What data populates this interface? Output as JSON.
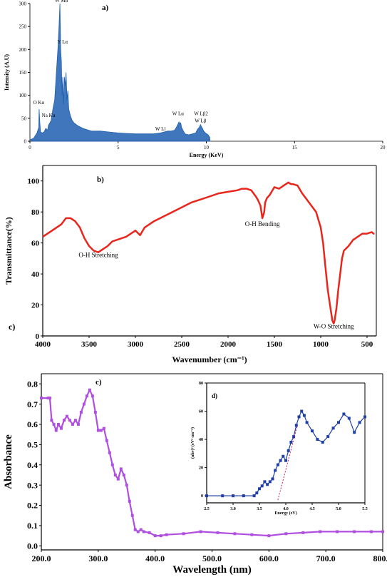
{
  "chart_data": [
    {
      "id": "a",
      "type": "area",
      "panel_label": "a)",
      "xlabel": "Energy (KeV)",
      "ylabel": "Intensity (A.U)",
      "xlim": [
        0,
        20
      ],
      "ylim": [
        0,
        300
      ],
      "xticks": [
        0,
        5,
        10,
        15,
        20
      ],
      "yticks": [
        0,
        50,
        100,
        150,
        200,
        250,
        300
      ],
      "color": "#1f5fb0",
      "series": [
        {
          "x": [
            0.05,
            0.2,
            0.3,
            0.4,
            0.5,
            0.52,
            0.56,
            0.6,
            0.7,
            0.8,
            0.9,
            1.0,
            1.05,
            1.1,
            1.2,
            1.3,
            1.4,
            1.5,
            1.6,
            1.65,
            1.7,
            1.74,
            1.78,
            1.82,
            1.86,
            1.9,
            1.95,
            2.0,
            2.05,
            2.1,
            2.15,
            2.2,
            2.3,
            2.4,
            2.5,
            2.7,
            3.0,
            3.5,
            4.0,
            4.5,
            5.0,
            5.5,
            6.0,
            6.5,
            7.0,
            7.4,
            7.6,
            7.8,
            8.0,
            8.2,
            8.3,
            8.4,
            8.45,
            8.5,
            8.55,
            8.6,
            8.7,
            8.8,
            9.0,
            9.2,
            9.4,
            9.5,
            9.6,
            9.67,
            9.72,
            9.78,
            9.85,
            9.95,
            10.1,
            10.2
          ],
          "y": [
            4,
            6,
            12,
            18,
            30,
            70,
            40,
            20,
            18,
            20,
            28,
            24,
            35,
            38,
            45,
            70,
            90,
            150,
            210,
            250,
            300,
            200,
            175,
            100,
            140,
            80,
            140,
            120,
            150,
            90,
            110,
            70,
            55,
            45,
            40,
            34,
            28,
            22,
            22,
            20,
            18,
            17,
            16,
            16,
            16,
            18,
            20,
            22,
            22,
            24,
            30,
            38,
            42,
            38,
            40,
            30,
            22,
            16,
            14,
            16,
            18,
            26,
            30,
            36,
            32,
            28,
            22,
            18,
            14,
            8
          ]
        }
      ],
      "annotations": [
        {
          "text": "W Mα",
          "x": 1.78,
          "y": 300
        },
        {
          "text": "Y Lα",
          "x": 1.85,
          "y": 210
        },
        {
          "text": "O Kα",
          "x": 0.5,
          "y": 78
        },
        {
          "text": "Na Kα",
          "x": 1.05,
          "y": 50
        },
        {
          "text": "W Ll",
          "x": 7.4,
          "y": 20
        },
        {
          "text": "W Lα",
          "x": 8.4,
          "y": 54
        },
        {
          "text": "W Lβ2",
          "x": 9.7,
          "y": 54
        },
        {
          "text": "W Lβ",
          "x": 9.67,
          "y": 38
        }
      ]
    },
    {
      "id": "b",
      "type": "line",
      "panel_label": "b)",
      "extra_label": "c)",
      "xlabel": "Wavenumber (cm⁻¹)",
      "ylabel": "Transmittance(%)",
      "xlim": [
        4000,
        400
      ],
      "ylim": [
        0,
        110
      ],
      "xticks": [
        4000,
        3500,
        3000,
        2500,
        2000,
        1500,
        1000,
        500
      ],
      "yticks": [
        0,
        20,
        40,
        60,
        80,
        100
      ],
      "color": "#e8261c",
      "series": [
        {
          "x": [
            4000,
            3900,
            3800,
            3750,
            3700,
            3650,
            3600,
            3550,
            3500,
            3450,
            3400,
            3350,
            3300,
            3250,
            3200,
            3100,
            3000,
            2950,
            2900,
            2850,
            2800,
            2700,
            2600,
            2500,
            2400,
            2300,
            2200,
            2100,
            2000,
            1900,
            1850,
            1800,
            1750,
            1700,
            1680,
            1650,
            1630,
            1610,
            1600,
            1580,
            1550,
            1500,
            1450,
            1400,
            1350,
            1320,
            1300,
            1250,
            1200,
            1150,
            1100,
            1050,
            1000,
            975,
            950,
            925,
            900,
            875,
            860,
            850,
            830,
            810,
            790,
            770,
            750,
            700,
            650,
            600,
            550,
            500,
            450,
            430,
            420
          ],
          "y": [
            64,
            68,
            72,
            76,
            76,
            74,
            70,
            63,
            58,
            55,
            54,
            56,
            58,
            61,
            62,
            64,
            68,
            65,
            70,
            72,
            74,
            77,
            80,
            83,
            86,
            88,
            90,
            92,
            93,
            94,
            95,
            95,
            94,
            90,
            88,
            84,
            76,
            80,
            86,
            89,
            91,
            96,
            95,
            97,
            99,
            98,
            98,
            97,
            92,
            88,
            84,
            80,
            70,
            60,
            45,
            30,
            20,
            10,
            8,
            10,
            18,
            30,
            40,
            50,
            55,
            58,
            62,
            64,
            66,
            66,
            67,
            66,
            66
          ]
        }
      ],
      "annotations": [
        {
          "text": "O-H Stretching",
          "x": 3400,
          "y": 50
        },
        {
          "text": "O-H Bending",
          "x": 1630,
          "y": 70
        },
        {
          "text": "W-O Stretching",
          "x": 860,
          "y": 4
        }
      ]
    },
    {
      "id": "c",
      "type": "line",
      "panel_label": "c)",
      "xlabel": "Wavelength (nm)",
      "ylabel": "Absorbance",
      "xlim": [
        200,
        800
      ],
      "ylim": [
        -0.02,
        0.85
      ],
      "xticks": [
        200,
        300,
        400,
        500,
        600,
        700,
        800
      ],
      "yticks": [
        0.0,
        0.1,
        0.2,
        0.3,
        0.4,
        0.5,
        0.6,
        0.7,
        0.8
      ],
      "color": "#b04fdf",
      "series": [
        {
          "x": [
            200,
            212,
            215,
            218,
            222,
            226,
            230,
            235,
            240,
            245,
            250,
            255,
            260,
            265,
            270,
            275,
            280,
            285,
            290,
            295,
            300,
            305,
            310,
            315,
            320,
            325,
            330,
            335,
            340,
            345,
            350,
            355,
            360,
            365,
            370,
            375,
            380,
            390,
            400,
            410,
            420,
            450,
            480,
            510,
            540,
            570,
            600,
            630,
            660,
            690,
            720,
            750,
            780,
            800
          ],
          "y": [
            0.73,
            0.73,
            0.73,
            0.62,
            0.6,
            0.57,
            0.6,
            0.58,
            0.62,
            0.64,
            0.62,
            0.6,
            0.62,
            0.6,
            0.66,
            0.7,
            0.74,
            0.77,
            0.74,
            0.66,
            0.57,
            0.57,
            0.58,
            0.52,
            0.46,
            0.4,
            0.35,
            0.33,
            0.38,
            0.35,
            0.3,
            0.22,
            0.15,
            0.08,
            0.07,
            0.08,
            0.07,
            0.065,
            0.05,
            0.05,
            0.055,
            0.06,
            0.07,
            0.065,
            0.06,
            0.055,
            0.05,
            0.06,
            0.065,
            0.07,
            0.07,
            0.07,
            0.07,
            0.07
          ]
        }
      ]
    },
    {
      "id": "d",
      "type": "line",
      "panel_label": "d)",
      "xlabel": "Energy (eV)",
      "ylabel": "(αhv)² (eV² cm⁻²)",
      "xlim": [
        2.5,
        5.5
      ],
      "ylim": [
        -5,
        80
      ],
      "xticks": [
        2.5,
        3.0,
        3.5,
        4.0,
        4.5,
        5.0,
        5.5
      ],
      "yticks": [
        0,
        20,
        40,
        60,
        80
      ],
      "color": "#1f3fa8",
      "fit_color": "#d11c5a",
      "series": [
        {
          "x": [
            2.5,
            2.8,
            3.0,
            3.2,
            3.4,
            3.45,
            3.5,
            3.55,
            3.6,
            3.65,
            3.7,
            3.75,
            3.8,
            3.85,
            3.9,
            3.95,
            4.0,
            4.05,
            4.1,
            4.15,
            4.2,
            4.25,
            4.3,
            4.35,
            4.4,
            4.5,
            4.6,
            4.7,
            4.8,
            4.9,
            5.0,
            5.1,
            5.2,
            5.3,
            5.4,
            5.5
          ],
          "y": [
            0,
            0,
            0,
            0,
            0,
            2,
            5,
            7,
            10,
            8,
            10,
            12,
            18,
            22,
            25,
            28,
            25,
            32,
            38,
            42,
            50,
            56,
            60,
            57,
            52,
            46,
            40,
            38,
            42,
            48,
            52,
            58,
            55,
            45,
            52,
            56
          ]
        }
      ],
      "fit_line": {
        "x": [
          3.85,
          4.22
        ],
        "y": [
          -3,
          50
        ]
      }
    }
  ]
}
